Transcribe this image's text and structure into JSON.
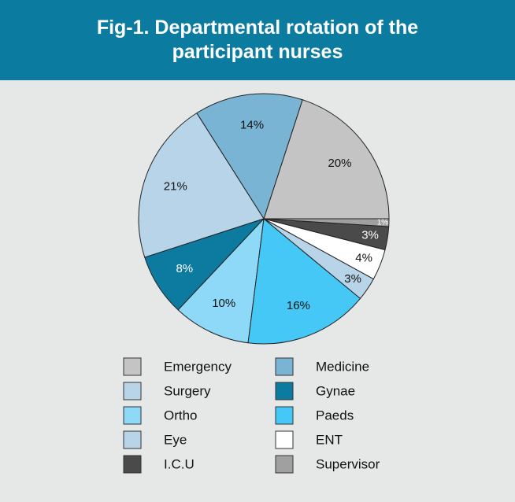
{
  "chart_data": {
    "type": "pie",
    "title": "Fig-1. Departmental rotation of the participant nurses",
    "categories": [
      "Emergency",
      "Medicine",
      "Surgery",
      "Gynae",
      "Ortho",
      "Paeds",
      "Eye",
      "ENT",
      "I.C.U",
      "Supervisor"
    ],
    "values": [
      20,
      14,
      21,
      8,
      10,
      16,
      3,
      4,
      3,
      1
    ],
    "value_labels": [
      "20%",
      "14%",
      "21%",
      "8%",
      "10%",
      "16%",
      "3%",
      "4%",
      "3%",
      "1%"
    ],
    "colors": [
      "#c4c4c4",
      "#7ab4d4",
      "#b8d4e8",
      "#0d7ba0",
      "#8ed8f8",
      "#45c8f5",
      "#b8d4e8",
      "#ffffff",
      "#4a4a4a",
      "#a0a0a0"
    ],
    "legend": "bottom"
  }
}
